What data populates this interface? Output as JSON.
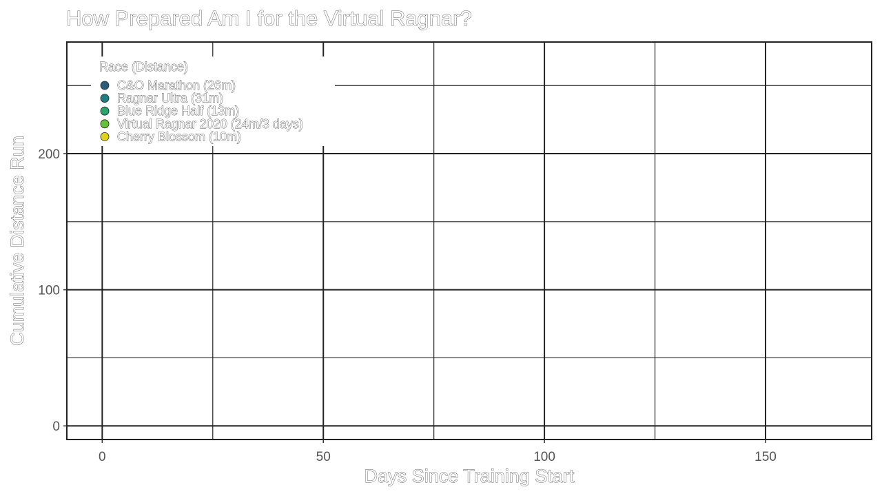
{
  "chart_data": {
    "type": "line",
    "title": "How Prepared Am I for the Virtual Ragnar?",
    "xlabel": "Days Since Training Start",
    "ylabel": "Cumulative Distance Run",
    "xlim": [
      -8,
      174
    ],
    "ylim": [
      -10,
      282
    ],
    "x_ticks": [
      0,
      50,
      100,
      150
    ],
    "y_ticks": [
      0,
      100,
      200
    ],
    "x_minor": [
      25,
      75,
      125
    ],
    "y_minor": [
      50,
      150,
      250
    ],
    "grid": true,
    "legend_title": "Race (Distance)",
    "legend_position": "top-left",
    "series": [
      {
        "name": "C&O Marathon (26m)",
        "color": "#2a5b7a",
        "values": []
      },
      {
        "name": "Ragnar Ultra (31m)",
        "color": "#1f7d83",
        "values": []
      },
      {
        "name": "Blue Ridge Half (13m)",
        "color": "#2aa36c",
        "values": []
      },
      {
        "name": "Virtual Ragnar 2020 (24m/3 days)",
        "color": "#63c13a",
        "values": []
      },
      {
        "name": "Cherry Blossom (10m)",
        "color": "#e0d21a",
        "values": []
      }
    ]
  }
}
